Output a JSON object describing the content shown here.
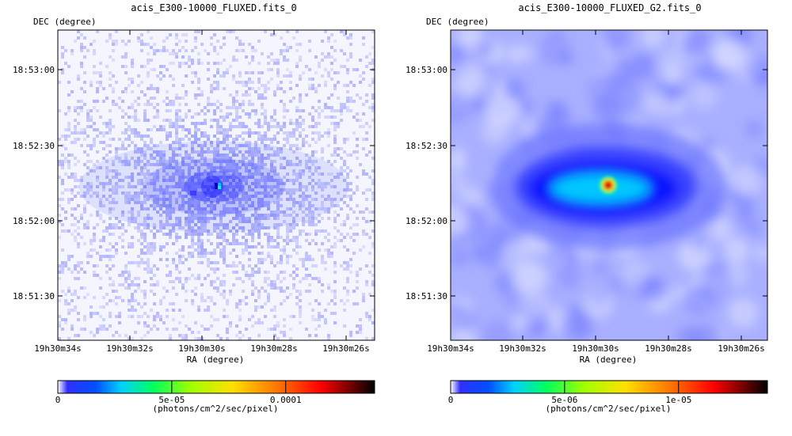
{
  "chart_data": [
    {
      "type": "heatmap",
      "title": "acis_E300-10000_FLUXED.fits_0",
      "xlabel": "RA (degree)",
      "ylabel": "DEC (degree)",
      "x_ticks": [
        "19h30m34s",
        "19h30m32s",
        "19h30m30s",
        "19h30m28s",
        "19h30m26s"
      ],
      "y_ticks": [
        "18:53:00",
        "18:52:30",
        "18:52:00",
        "18:51:30"
      ],
      "colorbar": {
        "label": "(photons/cm^2/sec/pixel)",
        "ticks": [
          "0",
          "5e-05",
          "0.0001"
        ],
        "tick_values": [
          0,
          5e-05,
          0.0001
        ],
        "range": [
          0,
          0.000139
        ]
      },
      "image": {
        "texture": "noisy",
        "source_peak": "bright point source with cyan core"
      }
    },
    {
      "type": "heatmap",
      "title": "acis_E300-10000_FLUXED_G2.fits_0",
      "xlabel": "RA (degree)",
      "ylabel": "DEC (degree)",
      "x_ticks": [
        "19h30m34s",
        "19h30m32s",
        "19h30m30s",
        "19h30m28s",
        "19h30m26s"
      ],
      "y_ticks": [
        "18:53:00",
        "18:52:30",
        "18:52:00",
        "18:51:30"
      ],
      "colorbar": {
        "label": "(photons/cm^2/sec/pixel)",
        "ticks": [
          "0",
          "5e-06",
          "1e-05"
        ],
        "tick_values": [
          0,
          5e-06,
          1e-05
        ],
        "range": [
          0,
          1.39e-05
        ]
      },
      "image": {
        "texture": "smoothed",
        "source_peak": "red/black core with cyan elongated halo"
      }
    }
  ],
  "colors": {
    "colormap": [
      "#ffffff",
      "#0000ff",
      "#00ffff",
      "#00ff00",
      "#ffff00",
      "#ff8800",
      "#ff0000",
      "#000000"
    ]
  }
}
